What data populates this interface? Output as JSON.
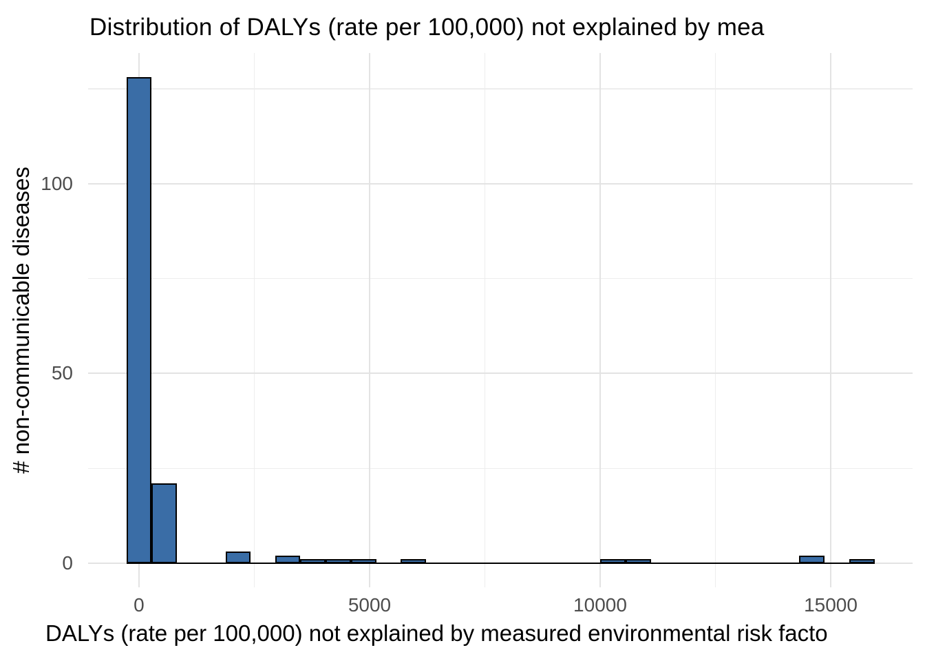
{
  "chart_data": {
    "type": "bar",
    "variant": "histogram",
    "title": "Distribution of DALYs (rate per 100,000) not explained by mea",
    "xlabel": "DALYs (rate per 100,000) not explained by measured environmental risk facto",
    "ylabel": "# non-communicable diseases",
    "grid": true,
    "legend_position": "none",
    "xlim": [
      -1104,
      16776
    ],
    "ylim": [
      -6.35,
      134.4
    ],
    "x_ticks": [
      {
        "value": 0,
        "label": "0"
      },
      {
        "value": 5000,
        "label": "5000"
      },
      {
        "value": 10000,
        "label": "10000"
      },
      {
        "value": 15000,
        "label": "15000"
      }
    ],
    "y_ticks": [
      {
        "value": 0,
        "label": "0"
      },
      {
        "value": 50,
        "label": "50"
      },
      {
        "value": 100,
        "label": "100"
      }
    ],
    "x_minor_gridlines": [
      2500,
      7500,
      12500
    ],
    "y_minor_gridlines": [
      25,
      75,
      125
    ],
    "bins": [
      {
        "x0": -275,
        "x1": 275,
        "count": 128
      },
      {
        "x0": 275,
        "x1": 825,
        "count": 21
      },
      {
        "x0": 1875,
        "x1": 2425,
        "count": 3
      },
      {
        "x0": 2950,
        "x1": 3500,
        "count": 2
      },
      {
        "x0": 3500,
        "x1": 4050,
        "count": 1
      },
      {
        "x0": 4050,
        "x1": 4600,
        "count": 1
      },
      {
        "x0": 4600,
        "x1": 5150,
        "count": 1
      },
      {
        "x0": 5675,
        "x1": 6225,
        "count": 1
      },
      {
        "x0": 10000,
        "x1": 10550,
        "count": 1
      },
      {
        "x0": 10550,
        "x1": 11100,
        "count": 1
      },
      {
        "x0": 14310,
        "x1": 14860,
        "count": 2
      },
      {
        "x0": 15400,
        "x1": 15950,
        "count": 1
      }
    ],
    "zero_baseline": {
      "x0": -275,
      "x1": 15950
    },
    "colors": {
      "bar_fill": "#3a6da6",
      "bar_stroke": "#000000",
      "gridline_major": "#e3e3e3",
      "gridline_minor": "#ededed",
      "tick_label": "#4d4d4d",
      "text": "#000000",
      "background": "#ffffff"
    }
  }
}
